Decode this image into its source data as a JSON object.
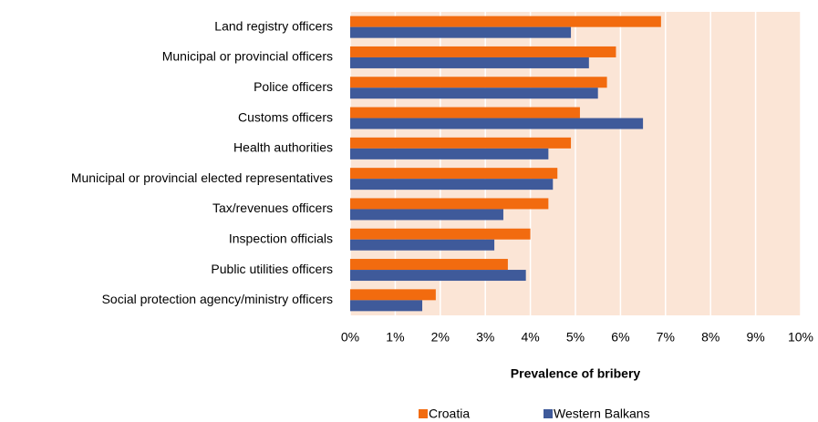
{
  "chart_data": {
    "type": "barh",
    "xlabel": "Prevalence of bribery",
    "categories": [
      "Land registry officers",
      "Municipal or provincial officers",
      "Police officers",
      "Customs officers",
      "Health authorities",
      "Municipal or provincial elected representatives",
      "Tax/revenues officers",
      "Inspection officials",
      "Public utilities officers",
      "Social protection agency/ministry officers"
    ],
    "series": [
      {
        "name": "Croatia",
        "color": "#f26b0f",
        "values": [
          6.9,
          5.9,
          5.7,
          5.1,
          4.9,
          4.6,
          4.4,
          4.0,
          3.5,
          1.9
        ]
      },
      {
        "name": "Western Balkans",
        "color": "#3f5a9a",
        "values": [
          4.9,
          5.3,
          5.5,
          6.5,
          4.4,
          4.5,
          3.4,
          3.2,
          3.9,
          1.6
        ]
      }
    ],
    "xlim": [
      0,
      10
    ],
    "xticks": [
      {
        "value": 0,
        "label": "0%"
      },
      {
        "value": 1,
        "label": "1%"
      },
      {
        "value": 2,
        "label": "2%"
      },
      {
        "value": 3,
        "label": "3%"
      },
      {
        "value": 4,
        "label": "4%"
      },
      {
        "value": 5,
        "label": "5%"
      },
      {
        "value": 6,
        "label": "6%"
      },
      {
        "value": 7,
        "label": "7%"
      },
      {
        "value": 8,
        "label": "8%"
      },
      {
        "value": 9,
        "label": "9%"
      },
      {
        "value": 10,
        "label": "10%"
      }
    ],
    "grid": true,
    "legend": "bottom"
  }
}
